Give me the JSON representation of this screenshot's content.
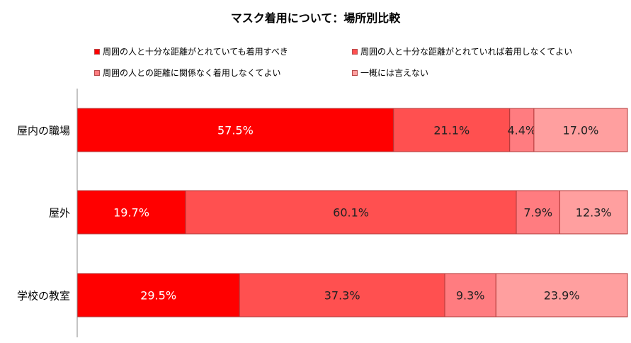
{
  "chart_data": {
    "type": "bar",
    "orientation": "horizontal",
    "stacked": true,
    "percent": true,
    "title": "マスク着用について：場所別比較",
    "categories": [
      "屋内の職場",
      "屋外",
      "学校の教室"
    ],
    "series": [
      {
        "name": "周囲の人と十分な距離がとれていても着用すべき",
        "values": [
          57.5,
          19.7,
          29.5
        ],
        "color": "#ff0000",
        "labels": [
          "57.5%",
          "19.7%",
          "29.5%"
        ]
      },
      {
        "name": "周囲の人と十分な距離がとれていれば着用しなくてよい",
        "values": [
          21.1,
          60.1,
          37.3
        ],
        "color": "#ff5050",
        "labels": [
          "21.1%",
          "60.1%",
          "37.3%"
        ]
      },
      {
        "name": "周囲の人との距離に関係なく着用しなくてよい",
        "values": [
          4.4,
          7.9,
          9.3
        ],
        "color": "#ff7c80",
        "labels": [
          "4.4%",
          "7.9%",
          "9.3%"
        ]
      },
      {
        "name": "一概には言えない",
        "values": [
          17.0,
          12.3,
          23.9
        ],
        "color": "#ff9f9f",
        "labels": [
          "17.0%",
          "12.3%",
          "23.9%"
        ]
      }
    ],
    "xlim": [
      0,
      100
    ],
    "grid": false,
    "legend_position": "top"
  }
}
